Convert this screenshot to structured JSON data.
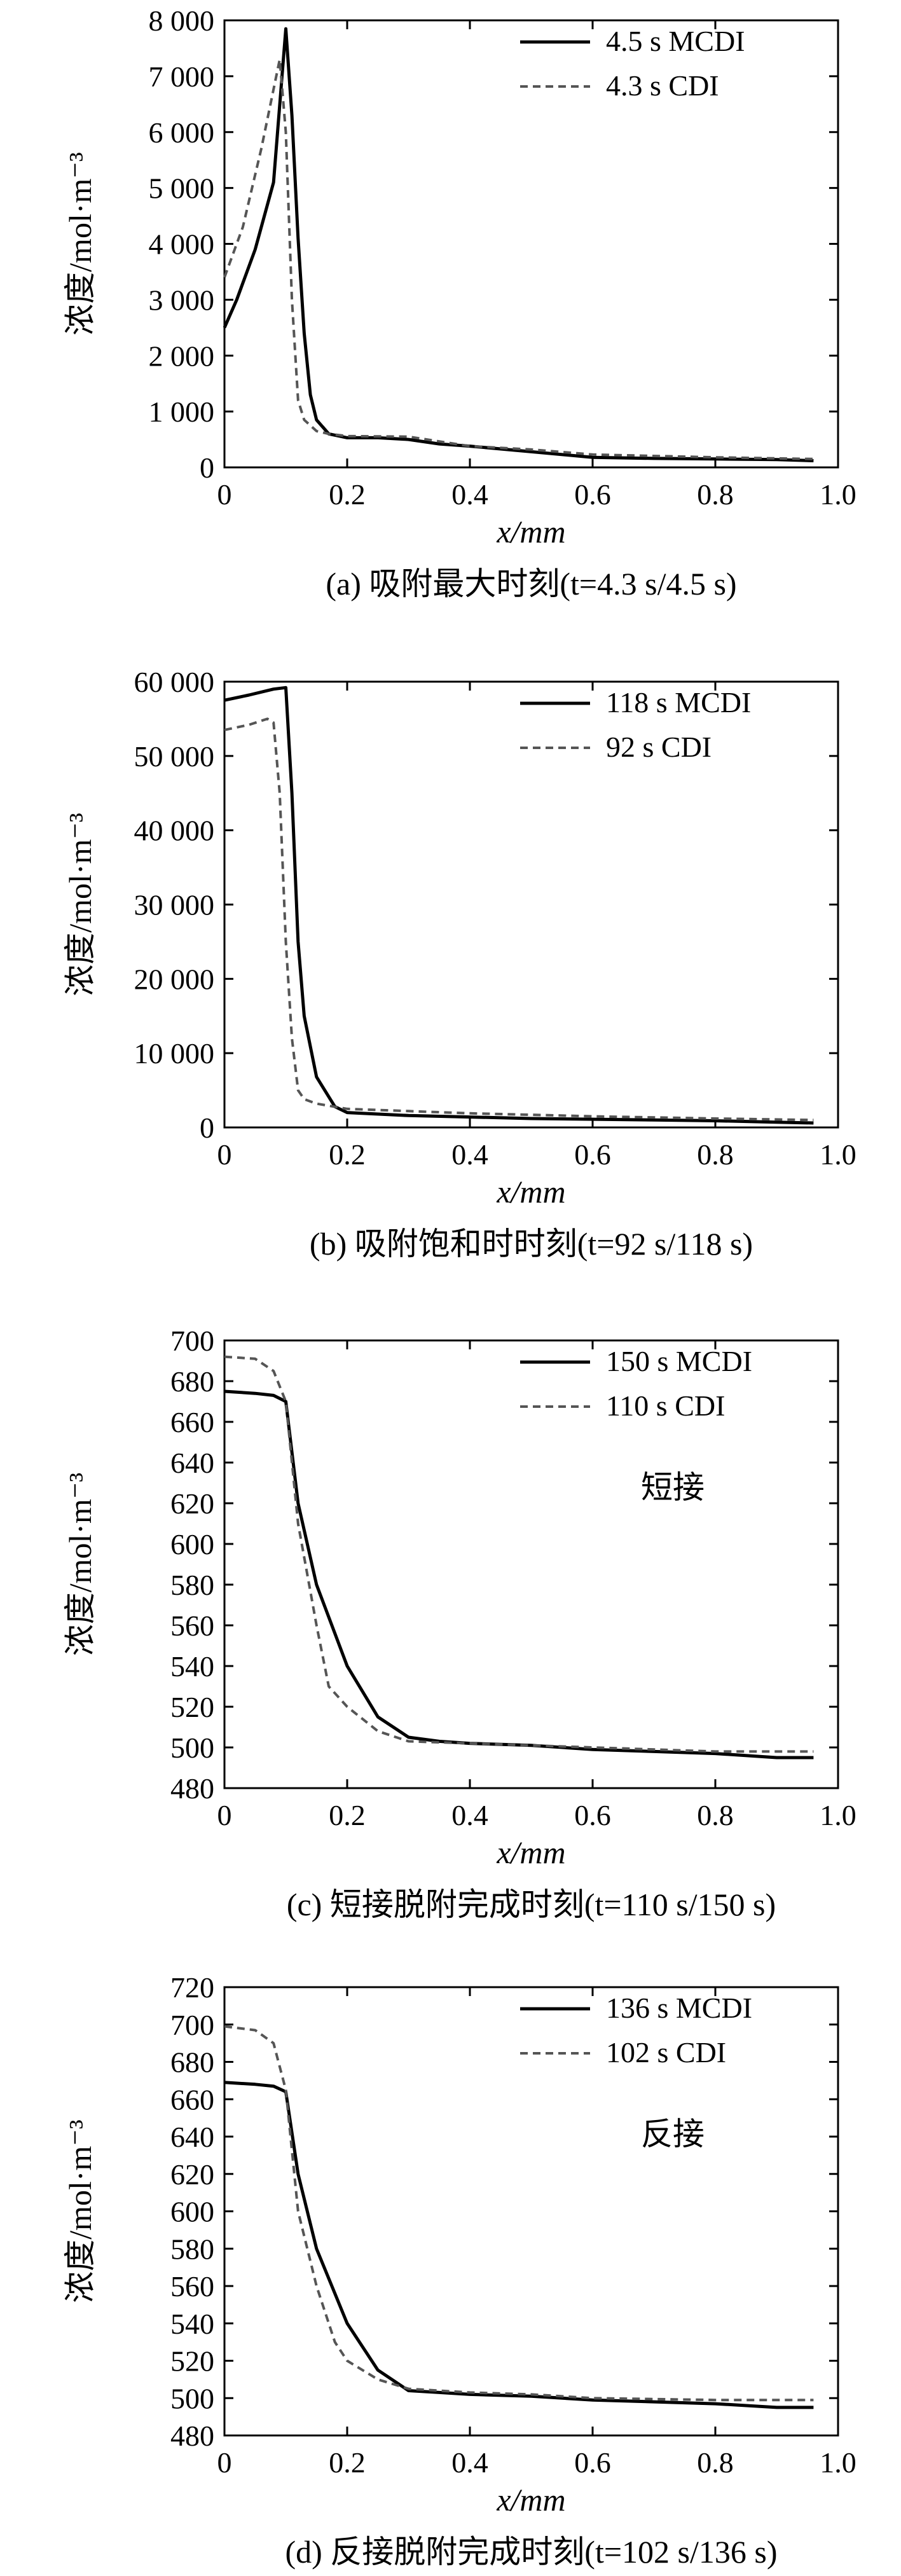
{
  "chart_data": [
    {
      "type": "line",
      "caption": "(a) 吸附最大时刻(t=4.3 s/4.5 s)",
      "xlabel": "x/mm",
      "ylabel": "浓度/mol·m⁻³",
      "xlim": [
        0,
        1.0
      ],
      "ylim": [
        0,
        8000
      ],
      "xticks": [
        "0",
        "0.2",
        "0.4",
        "0.6",
        "0.8",
        "1.0"
      ],
      "xtick_values": [
        0,
        0.2,
        0.4,
        0.6,
        0.8,
        1.0
      ],
      "yticks": [
        "0",
        "1 000",
        "2 000",
        "3 000",
        "4 000",
        "5 000",
        "6 000",
        "7 000",
        "8 000"
      ],
      "ytick_values": [
        0,
        1000,
        2000,
        3000,
        4000,
        5000,
        6000,
        7000,
        8000
      ],
      "legend_position": "top-right",
      "annotation": "",
      "grid": false,
      "series": [
        {
          "name": "4.5 s MCDI",
          "style": "solid",
          "color": "#000000",
          "x": [
            0,
            0.02,
            0.05,
            0.08,
            0.1,
            0.11,
            0.12,
            0.13,
            0.14,
            0.15,
            0.17,
            0.2,
            0.25,
            0.3,
            0.35,
            0.4,
            0.5,
            0.6,
            0.7,
            0.8,
            0.9,
            0.96
          ],
          "y": [
            2500,
            3000,
            3900,
            5100,
            7850,
            6300,
            4100,
            2400,
            1300,
            850,
            600,
            530,
            530,
            500,
            420,
            380,
            280,
            180,
            160,
            150,
            140,
            120
          ]
        },
        {
          "name": "4.3 s CDI",
          "style": "dashed",
          "color": "#555555",
          "x": [
            0,
            0.03,
            0.06,
            0.09,
            0.1,
            0.11,
            0.12,
            0.13,
            0.15,
            0.17,
            0.2,
            0.3,
            0.4,
            0.5,
            0.6,
            0.8,
            0.96
          ],
          "y": [
            3400,
            4300,
            5700,
            7300,
            6000,
            3000,
            1200,
            850,
            650,
            600,
            560,
            550,
            380,
            320,
            230,
            180,
            150
          ]
        }
      ]
    },
    {
      "type": "line",
      "caption": "(b) 吸附饱和时时刻(t=92 s/118 s)",
      "xlabel": "x/mm",
      "ylabel": "浓度/mol·m⁻³",
      "xlim": [
        0,
        1.0
      ],
      "ylim": [
        0,
        60000
      ],
      "xticks": [
        "0",
        "0.2",
        "0.4",
        "0.6",
        "0.8",
        "1.0"
      ],
      "xtick_values": [
        0,
        0.2,
        0.4,
        0.6,
        0.8,
        1.0
      ],
      "yticks": [
        "0",
        "10 000",
        "20 000",
        "30 000",
        "40 000",
        "50 000",
        "60 000"
      ],
      "ytick_values": [
        0,
        10000,
        20000,
        30000,
        40000,
        50000,
        60000
      ],
      "legend_position": "top-right",
      "annotation": "",
      "grid": false,
      "series": [
        {
          "name": "118 s MCDI",
          "style": "solid",
          "color": "#000000",
          "x": [
            0,
            0.04,
            0.08,
            0.1,
            0.11,
            0.12,
            0.13,
            0.15,
            0.18,
            0.2,
            0.3,
            0.4,
            0.5,
            0.6,
            0.7,
            0.8,
            0.9,
            0.96
          ],
          "y": [
            57500,
            58200,
            59000,
            59200,
            45000,
            25000,
            15000,
            6800,
            2800,
            2000,
            1600,
            1400,
            1200,
            1100,
            1000,
            900,
            700,
            600
          ]
        },
        {
          "name": "92 s CDI",
          "style": "dashed",
          "color": "#555555",
          "x": [
            0,
            0.04,
            0.07,
            0.08,
            0.09,
            0.1,
            0.11,
            0.12,
            0.13,
            0.15,
            0.2,
            0.3,
            0.4,
            0.5,
            0.6,
            0.8,
            0.96
          ],
          "y": [
            53500,
            54200,
            55000,
            54500,
            45000,
            25000,
            12000,
            5000,
            3800,
            3200,
            2500,
            2200,
            1900,
            1700,
            1500,
            1200,
            1000
          ]
        }
      ]
    },
    {
      "type": "line",
      "caption": "(c) 短接脱附完成时刻(t=110 s/150 s)",
      "xlabel": "x/mm",
      "ylabel": "浓度/mol·m⁻³",
      "xlim": [
        0,
        1.0
      ],
      "ylim": [
        480,
        700
      ],
      "xticks": [
        "0",
        "0.2",
        "0.4",
        "0.6",
        "0.8",
        "1.0"
      ],
      "xtick_values": [
        0,
        0.2,
        0.4,
        0.6,
        0.8,
        1.0
      ],
      "yticks": [
        "480",
        "500",
        "520",
        "540",
        "560",
        "580",
        "600",
        "620",
        "640",
        "660",
        "680",
        "700"
      ],
      "ytick_values": [
        480,
        500,
        520,
        540,
        560,
        580,
        600,
        620,
        640,
        660,
        680,
        700
      ],
      "legend_position": "top-right",
      "annotation": "短接",
      "grid": false,
      "series": [
        {
          "name": "150 s MCDI",
          "style": "solid",
          "color": "#000000",
          "x": [
            0,
            0.05,
            0.08,
            0.1,
            0.12,
            0.15,
            0.2,
            0.25,
            0.3,
            0.35,
            0.4,
            0.5,
            0.6,
            0.7,
            0.8,
            0.9,
            0.96
          ],
          "y": [
            675,
            674,
            673,
            670,
            620,
            580,
            540,
            515,
            505,
            503,
            502,
            501,
            499,
            498,
            497,
            495,
            495
          ]
        },
        {
          "name": "110 s CDI",
          "style": "dashed",
          "color": "#555555",
          "x": [
            0,
            0.05,
            0.08,
            0.1,
            0.12,
            0.15,
            0.17,
            0.2,
            0.25,
            0.3,
            0.4,
            0.5,
            0.6,
            0.8,
            0.96
          ],
          "y": [
            692,
            691,
            685,
            670,
            610,
            560,
            530,
            520,
            508,
            503,
            502,
            501,
            500,
            498,
            498
          ]
        }
      ]
    },
    {
      "type": "line",
      "caption": "(d) 反接脱附完成时刻(t=102 s/136 s)",
      "xlabel": "x/mm",
      "ylabel": "浓度/mol·m⁻³",
      "xlim": [
        0,
        1.0
      ],
      "ylim": [
        480,
        720
      ],
      "xticks": [
        "0",
        "0.2",
        "0.4",
        "0.6",
        "0.8",
        "1.0"
      ],
      "xtick_values": [
        0,
        0.2,
        0.4,
        0.6,
        0.8,
        1.0
      ],
      "yticks": [
        "480",
        "500",
        "520",
        "540",
        "560",
        "580",
        "600",
        "620",
        "640",
        "660",
        "680",
        "700",
        "720"
      ],
      "ytick_values": [
        480,
        500,
        520,
        540,
        560,
        580,
        600,
        620,
        640,
        660,
        680,
        700,
        720
      ],
      "legend_position": "top-right",
      "annotation": "反接",
      "grid": false,
      "series": [
        {
          "name": "136 s MCDI",
          "style": "solid",
          "color": "#000000",
          "x": [
            0,
            0.05,
            0.08,
            0.1,
            0.12,
            0.15,
            0.2,
            0.25,
            0.3,
            0.35,
            0.4,
            0.5,
            0.6,
            0.7,
            0.8,
            0.9,
            0.96
          ],
          "y": [
            669,
            668,
            667,
            664,
            620,
            580,
            540,
            515,
            504,
            503,
            502,
            501,
            499,
            498,
            497,
            495,
            495
          ]
        },
        {
          "name": "102 s CDI",
          "style": "dashed",
          "color": "#555555",
          "x": [
            0,
            0.05,
            0.08,
            0.1,
            0.12,
            0.15,
            0.18,
            0.2,
            0.25,
            0.3,
            0.4,
            0.5,
            0.6,
            0.8,
            0.96
          ],
          "y": [
            699,
            697,
            690,
            665,
            600,
            560,
            530,
            520,
            510,
            505,
            503,
            502,
            500,
            499,
            499
          ]
        }
      ]
    }
  ]
}
